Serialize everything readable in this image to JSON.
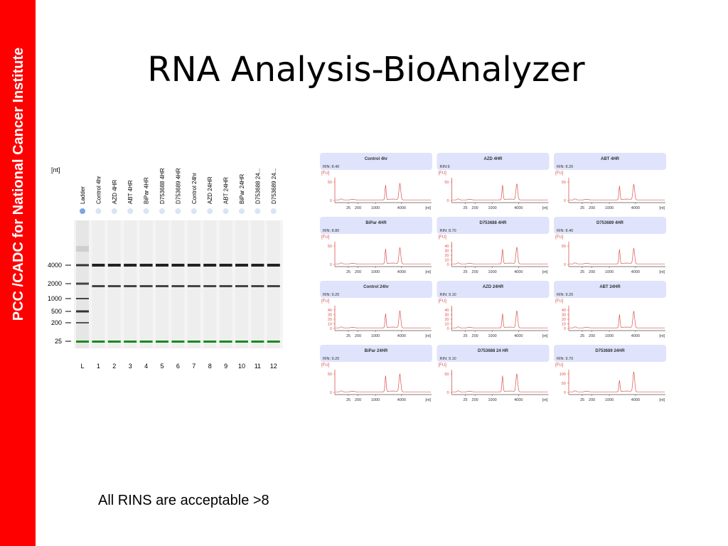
{
  "slide": {
    "sidebar_text": "PCC /CADC for National Cancer Institute",
    "title": "RNA Analysis-BioAnalyzer",
    "footnote": "All RINS are acceptable >8"
  },
  "colors": {
    "sidebar": "#ff0000",
    "trace": "#d9534f",
    "panel_header": "#dfe3fb",
    "marker_band": "#1a8a1a"
  },
  "gel": {
    "unit_label": "[nt]",
    "lanes": [
      {
        "label": "Ladder",
        "number": "L"
      },
      {
        "label": "Control 4hr",
        "number": "1"
      },
      {
        "label": "AZD 4HR",
        "number": "2"
      },
      {
        "label": "ABT 4HR",
        "number": "3"
      },
      {
        "label": "BiPar 4HR",
        "number": "4"
      },
      {
        "label": "D753688 4HR",
        "number": "5"
      },
      {
        "label": "D753689 4HR",
        "number": "6"
      },
      {
        "label": "Control 24hr",
        "number": "7"
      },
      {
        "label": "AZD 24HR",
        "number": "8"
      },
      {
        "label": "ABT 24HR",
        "number": "9"
      },
      {
        "label": "BiPar 24HR",
        "number": "10"
      },
      {
        "label": "D753688 24...",
        "number": "11"
      },
      {
        "label": "D753689 24...",
        "number": "12"
      }
    ],
    "size_markers": [
      "4000",
      "2000",
      "1000",
      "500",
      "200",
      "25"
    ]
  },
  "electropherograms": {
    "y_unit": "[FU]",
    "x_unit": "[nt]",
    "x_ticks": [
      "25",
      "200",
      "1000",
      "4000"
    ],
    "panels": [
      {
        "title": "Control 4hr",
        "rin": "RIN: 8.40",
        "y_ticks": [
          "50",
          "0"
        ],
        "ymax": 80,
        "p18": 55,
        "p28": 62
      },
      {
        "title": "AZD 4HR",
        "rin": "RIN:9",
        "y_ticks": [
          "50",
          "0"
        ],
        "ymax": 80,
        "p18": 55,
        "p28": 60
      },
      {
        "title": "ABT 4HR",
        "rin": "RIN: 8.20",
        "y_ticks": [
          "50",
          "0"
        ],
        "ymax": 80,
        "p18": 52,
        "p28": 58
      },
      {
        "title": "BiPar 4HR",
        "rin": "RIN: 8.80",
        "y_ticks": [
          "50",
          "0"
        ],
        "ymax": 80,
        "p18": 56,
        "p28": 61
      },
      {
        "title": "D753688 4HR",
        "rin": "RIN: 8.70",
        "y_ticks": [
          "40",
          "30",
          "20",
          "10",
          "0"
        ],
        "ymax": 45,
        "p18": 31,
        "p28": 35
      },
      {
        "title": "D753689 4HR",
        "rin": "RIN: 8.40",
        "y_ticks": [
          "50",
          "0"
        ],
        "ymax": 80,
        "p18": 54,
        "p28": 58
      },
      {
        "title": "Control 24hr",
        "rin": "RIN: 9.20",
        "y_ticks": [
          "40",
          "30",
          "20",
          "10",
          "0"
        ],
        "ymax": 50,
        "p18": 33,
        "p28": 40
      },
      {
        "title": "AZD 24HR",
        "rin": "RIN: 9.10",
        "y_ticks": [
          "40",
          "30",
          "20",
          "10",
          "0"
        ],
        "ymax": 50,
        "p18": 33,
        "p28": 40
      },
      {
        "title": "ABT 24HR",
        "rin": "RIN: 9.20",
        "y_ticks": [
          "40",
          "30",
          "20",
          "10",
          "0"
        ],
        "ymax": 50,
        "p18": 31,
        "p28": 39
      },
      {
        "title": "BiPar 24HR",
        "rin": "RIN: 9.20",
        "y_ticks": [
          "50",
          "0"
        ],
        "ymax": 80,
        "p18": 60,
        "p28": 67
      },
      {
        "title": "D753688 24 HR",
        "rin": "RIN: 9.10",
        "y_ticks": [
          "50",
          "0"
        ],
        "ymax": 80,
        "p18": 60,
        "p28": 67
      },
      {
        "title": "D753689 24HR",
        "rin": "RIN: 9.70",
        "y_ticks": [
          "100",
          "50",
          "0"
        ],
        "ymax": 150,
        "p18": 80,
        "p28": 140
      }
    ]
  }
}
